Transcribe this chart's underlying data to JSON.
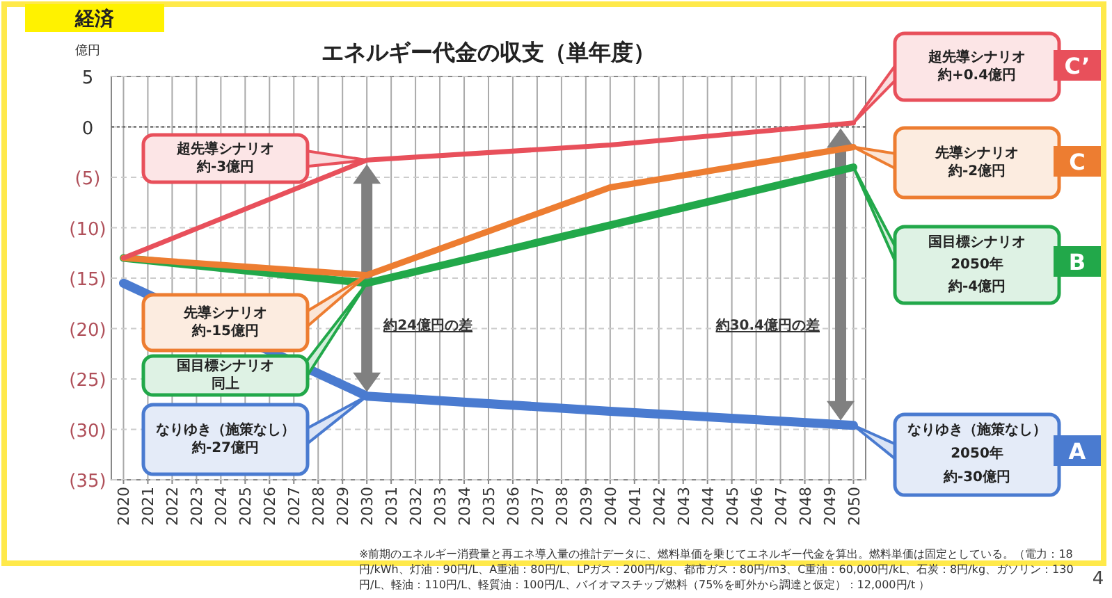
{
  "chart_data": {
    "type": "line",
    "title": "エネルギー代金の収支（単年度）",
    "ylabel": "億円",
    "xlim": [
      2019.5,
      2050.5
    ],
    "xticks": [
      2020,
      2021,
      2022,
      2023,
      2024,
      2025,
      2026,
      2027,
      2028,
      2029,
      2030,
      2031,
      2032,
      2033,
      2034,
      2035,
      2036,
      2037,
      2038,
      2039,
      2040,
      2041,
      2042,
      2043,
      2044,
      2045,
      2046,
      2047,
      2048,
      2049,
      2050
    ],
    "ylim": [
      -35,
      5
    ],
    "yticks": [
      5,
      0,
      {
        "value": -5,
        "label": "(5)"
      },
      {
        "value": -10,
        "label": "(10)"
      },
      {
        "value": -15,
        "label": "(15)"
      },
      {
        "value": -20,
        "label": "(20)"
      },
      {
        "value": -25,
        "label": "(25)"
      },
      {
        "value": -30,
        "label": "(30)"
      },
      {
        "value": -35,
        "label": "(35)"
      }
    ],
    "grid": true,
    "marker": "none",
    "line_style": "solid",
    "ref_lines": [
      {
        "axis": "y",
        "value": 0,
        "line_style": "dotted",
        "color": "#555555"
      }
    ],
    "series": [
      {
        "color": "#4a7bd0",
        "x": [
          2020,
          2030,
          2040,
          2050
        ],
        "values": [
          -15.5,
          -26.7,
          -28.2,
          -29.6
        ]
      },
      {
        "color": "#22a84a",
        "x": [
          2020,
          2030,
          2050
        ],
        "values": [
          -13,
          -15.5,
          -4
        ]
      },
      {
        "color": "#ed7d31",
        "x": [
          2020,
          2030,
          2040,
          2050
        ],
        "values": [
          -13,
          -14.7,
          -6,
          -2
        ]
      },
      {
        "color": "#e8505b",
        "x": [
          2020,
          2030,
          2040,
          2050
        ],
        "values": [
          -13,
          -3.3,
          -1.8,
          0.4
        ]
      }
    ],
    "annotations": [
      "経済",
      "※前期のエネルギー消費量と再エネ導入量の推計データに、燃料単価を乗じてエネルギー代金を算出。燃料単価は固定としている。（電力：18円/kWh、灯油：90円/L、A重油：80円/L、LPガス：200円/kg、都市ガス：80円/m3、C重油：60,000円/kL、石炭：8円/kg、ガソリン：130円/L、軽油：110円/L、軽質油：100円/L、バイオマスチップ燃料（75%を町外から調達と仮定）：12,000円/t ）",
      "4",
      "超先導シナリオ約-3億円",
      "先導シナリオ約-15億円",
      "国目標シナリオ同上",
      "なりゆき（施策なし）約-27億円",
      "超先導シナリオ約+0.4億円",
      "C’",
      "先導シナリオ約-2億円",
      "C",
      "国目標シナリオ",
      "2050年",
      "約-4億円",
      "B",
      "なりゆき（施策なし）",
      "2050年",
      "約-30億円",
      "A",
      "約24億円の差",
      "約30.4億円の差"
    ]
  }
}
